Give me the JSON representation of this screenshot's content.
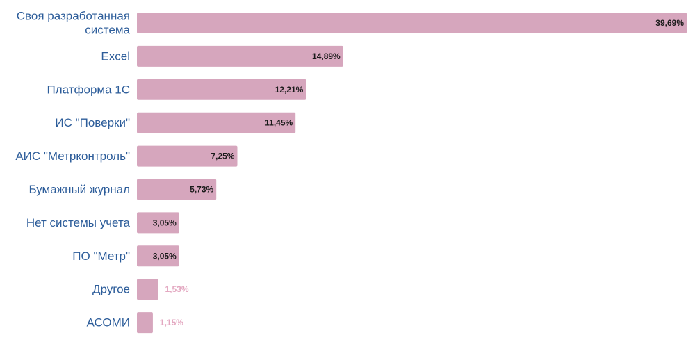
{
  "chart_data": {
    "type": "bar",
    "orientation": "horizontal",
    "categories": [
      [
        "Своя разработанная",
        "система"
      ],
      [
        "Excel"
      ],
      [
        "Платформа 1С"
      ],
      [
        "ИС \"Поверки\""
      ],
      [
        "АИС \"Метрконтроль\""
      ],
      [
        "Бумажный журнал"
      ],
      [
        "Нет системы учета"
      ],
      [
        "ПО \"Метр\""
      ],
      [
        "Другое"
      ],
      [
        "АСОМИ"
      ]
    ],
    "values": [
      39.69,
      14.89,
      12.21,
      11.45,
      7.25,
      5.73,
      3.05,
      3.05,
      1.53,
      1.15
    ],
    "value_labels": [
      "39,69%",
      "14,89%",
      "12,21%",
      "11,45%",
      "7,25%",
      "5,73%",
      "3,05%",
      "3,05%",
      "1,53%",
      "1,15%"
    ],
    "xlim": [
      0,
      39.69
    ],
    "grid": false,
    "legend": "none",
    "colors": {
      "bar": "#d6a6bd",
      "category_text": "#2d5d9a",
      "value_text_inside": "#1a1a1a",
      "value_text_outside": "#e3a7c0"
    }
  }
}
